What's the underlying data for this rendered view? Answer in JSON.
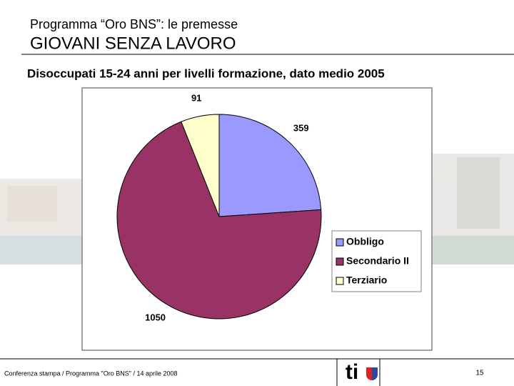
{
  "header": {
    "title": "Programma “Oro BNS”: le premesse",
    "subtitle": "GIOVANI SENZA LAVORO"
  },
  "chart_data": {
    "type": "pie",
    "title": "Disoccupati 15-24 anni per livelli formazione, dato medio 2005",
    "categories": [
      "Obbligo",
      "Secondario II",
      "Terziario"
    ],
    "values": [
      359,
      1050,
      91
    ],
    "colors": [
      "#9999ff",
      "#993366",
      "#ffffcc"
    ],
    "legend": "right"
  },
  "footer": {
    "text": "Conferenza stampa / Programma \"Oro BNS\" / 14 aprile 2008",
    "logo": "ti",
    "page": 15
  }
}
